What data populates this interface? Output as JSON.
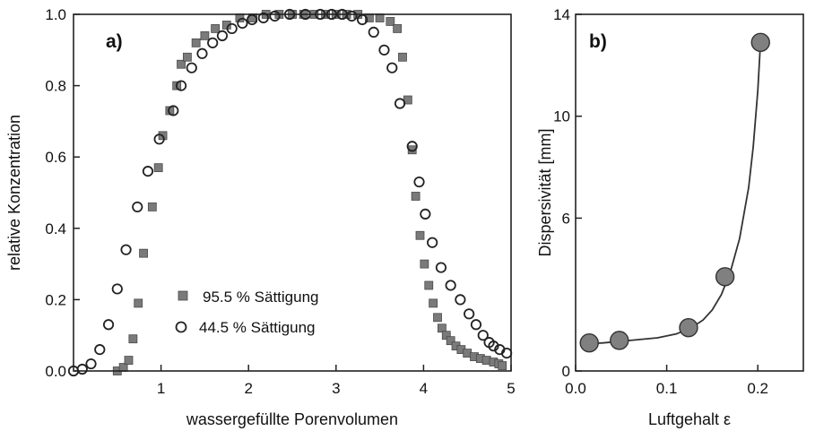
{
  "chart_data": [
    {
      "type": "scatter",
      "panel_label": "a)",
      "xlabel": "wassergefüllte Porenvolumen",
      "ylabel": "relative Konzentration",
      "xlim": [
        0,
        5
      ],
      "ylim": [
        0,
        1
      ],
      "x_ticks": [
        1,
        2,
        3,
        4,
        5
      ],
      "y_ticks": [
        0.0,
        0.2,
        0.4,
        0.6,
        0.8,
        1.0
      ],
      "y_tick_labels": [
        "0.0",
        "0.2",
        "0.4",
        "0.6",
        "0.8",
        "1.0"
      ],
      "grid": false,
      "legend_position": "lower-center",
      "series": [
        {
          "name": "95.5 % Sättigung",
          "marker": "filled-square",
          "color": "#7a7a7a",
          "points": [
            [
              0.5,
              0.0
            ],
            [
              0.57,
              0.01
            ],
            [
              0.63,
              0.03
            ],
            [
              0.68,
              0.09
            ],
            [
              0.74,
              0.19
            ],
            [
              0.8,
              0.33
            ],
            [
              0.9,
              0.46
            ],
            [
              0.97,
              0.57
            ],
            [
              1.02,
              0.66
            ],
            [
              1.1,
              0.73
            ],
            [
              1.18,
              0.8
            ],
            [
              1.23,
              0.86
            ],
            [
              1.3,
              0.88
            ],
            [
              1.4,
              0.92
            ],
            [
              1.5,
              0.94
            ],
            [
              1.62,
              0.96
            ],
            [
              1.75,
              0.97
            ],
            [
              1.9,
              0.99
            ],
            [
              2.05,
              0.99
            ],
            [
              2.2,
              1.0
            ],
            [
              2.35,
              1.0
            ],
            [
              2.5,
              1.0
            ],
            [
              2.63,
              1.0
            ],
            [
              2.75,
              1.0
            ],
            [
              2.88,
              1.0
            ],
            [
              3.0,
              1.0
            ],
            [
              3.12,
              1.0
            ],
            [
              3.25,
              1.0
            ],
            [
              3.38,
              0.99
            ],
            [
              3.5,
              0.99
            ],
            [
              3.62,
              0.98
            ],
            [
              3.7,
              0.96
            ],
            [
              3.76,
              0.88
            ],
            [
              3.82,
              0.76
            ],
            [
              3.87,
              0.62
            ],
            [
              3.91,
              0.49
            ],
            [
              3.96,
              0.38
            ],
            [
              4.01,
              0.3
            ],
            [
              4.06,
              0.24
            ],
            [
              4.11,
              0.19
            ],
            [
              4.16,
              0.15
            ],
            [
              4.21,
              0.12
            ],
            [
              4.26,
              0.1
            ],
            [
              4.31,
              0.085
            ],
            [
              4.37,
              0.07
            ],
            [
              4.43,
              0.06
            ],
            [
              4.5,
              0.05
            ],
            [
              4.58,
              0.04
            ],
            [
              4.65,
              0.035
            ],
            [
              4.72,
              0.03
            ],
            [
              4.8,
              0.025
            ],
            [
              4.86,
              0.02
            ],
            [
              4.9,
              0.015
            ]
          ]
        },
        {
          "name": "44.5 % Sättigung",
          "marker": "open-circle",
          "color": "#222222",
          "points": [
            [
              0.0,
              0.0
            ],
            [
              0.1,
              0.005
            ],
            [
              0.2,
              0.02
            ],
            [
              0.3,
              0.06
            ],
            [
              0.4,
              0.13
            ],
            [
              0.5,
              0.23
            ],
            [
              0.6,
              0.34
            ],
            [
              0.73,
              0.46
            ],
            [
              0.85,
              0.56
            ],
            [
              0.98,
              0.65
            ],
            [
              1.14,
              0.73
            ],
            [
              1.23,
              0.8
            ],
            [
              1.35,
              0.85
            ],
            [
              1.47,
              0.89
            ],
            [
              1.59,
              0.92
            ],
            [
              1.7,
              0.94
            ],
            [
              1.81,
              0.96
            ],
            [
              1.93,
              0.975
            ],
            [
              2.04,
              0.985
            ],
            [
              2.17,
              0.99
            ],
            [
              2.3,
              0.995
            ],
            [
              2.47,
              1.0
            ],
            [
              2.65,
              1.0
            ],
            [
              2.82,
              1.0
            ],
            [
              2.95,
              1.0
            ],
            [
              3.07,
              1.0
            ],
            [
              3.18,
              0.995
            ],
            [
              3.3,
              0.985
            ],
            [
              3.43,
              0.95
            ],
            [
              3.55,
              0.9
            ],
            [
              3.64,
              0.85
            ],
            [
              3.73,
              0.75
            ],
            [
              3.87,
              0.63
            ],
            [
              3.95,
              0.53
            ],
            [
              4.02,
              0.44
            ],
            [
              4.1,
              0.36
            ],
            [
              4.2,
              0.29
            ],
            [
              4.31,
              0.24
            ],
            [
              4.42,
              0.2
            ],
            [
              4.52,
              0.16
            ],
            [
              4.6,
              0.13
            ],
            [
              4.68,
              0.1
            ],
            [
              4.75,
              0.08
            ],
            [
              4.8,
              0.07
            ],
            [
              4.87,
              0.06
            ],
            [
              4.95,
              0.05
            ]
          ]
        }
      ]
    },
    {
      "type": "line",
      "panel_label": "b)",
      "xlabel": "Luftgehalt ε",
      "ylabel": "Dispersivität [mm]",
      "xlim": [
        0,
        0.25
      ],
      "ylim": [
        0,
        14
      ],
      "x_ticks": [
        0.0,
        0.1,
        0.2
      ],
      "x_tick_labels": [
        "0.0",
        "0.1",
        "0.2"
      ],
      "y_ticks": [
        0,
        6,
        10,
        14
      ],
      "y_tick_labels": [
        "0",
        "6",
        "10",
        "14"
      ],
      "grid": false,
      "series": [
        {
          "marker": "filled-circle",
          "color": "#808080",
          "points": [
            [
              0.015,
              1.1
            ],
            [
              0.048,
              1.2
            ],
            [
              0.124,
              1.7
            ],
            [
              0.164,
              3.7
            ],
            [
              0.203,
              12.9
            ]
          ]
        }
      ],
      "fit_curve": [
        [
          0.005,
          1.05
        ],
        [
          0.03,
          1.1
        ],
        [
          0.06,
          1.2
        ],
        [
          0.09,
          1.3
        ],
        [
          0.11,
          1.45
        ],
        [
          0.125,
          1.65
        ],
        [
          0.14,
          2.0
        ],
        [
          0.15,
          2.4
        ],
        [
          0.16,
          3.0
        ],
        [
          0.17,
          3.9
        ],
        [
          0.18,
          5.2
        ],
        [
          0.19,
          7.2
        ],
        [
          0.195,
          8.8
        ],
        [
          0.2,
          11.0
        ],
        [
          0.203,
          12.9
        ]
      ]
    }
  ]
}
